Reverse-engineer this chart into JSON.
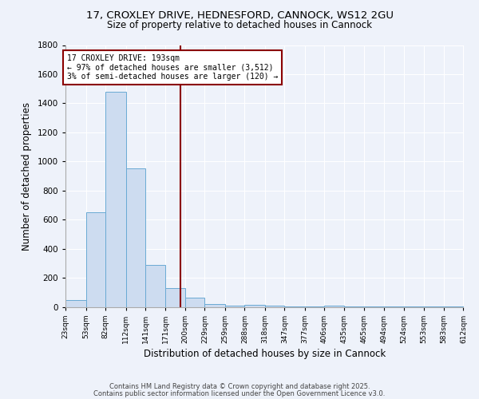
{
  "title1": "17, CROXLEY DRIVE, HEDNESFORD, CANNOCK, WS12 2GU",
  "title2": "Size of property relative to detached houses in Cannock",
  "xlabel": "Distribution of detached houses by size in Cannock",
  "ylabel": "Number of detached properties",
  "bins": [
    23,
    53,
    82,
    112,
    141,
    171,
    200,
    229,
    259,
    288,
    318,
    347,
    377,
    406,
    435,
    465,
    494,
    524,
    553,
    583,
    612
  ],
  "counts": [
    50,
    650,
    1480,
    950,
    290,
    130,
    65,
    22,
    10,
    12,
    8,
    5,
    3,
    10,
    2,
    2,
    1,
    1,
    1,
    1
  ],
  "bar_color": "#cddcf0",
  "bar_edge_color": "#6aaad4",
  "vline_x": 193,
  "vline_color": "#8b0000",
  "annotation_text_line1": "17 CROXLEY DRIVE: 193sqm",
  "annotation_text_line2": "← 97% of detached houses are smaller (3,512)",
  "annotation_text_line3": "3% of semi-detached houses are larger (120) →",
  "annotation_box_color": "#8b0000",
  "ylim": [
    0,
    1800
  ],
  "yticks": [
    0,
    200,
    400,
    600,
    800,
    1000,
    1200,
    1400,
    1600,
    1800
  ],
  "footer1": "Contains HM Land Registry data © Crown copyright and database right 2025.",
  "footer2": "Contains public sector information licensed under the Open Government Licence v3.0.",
  "bg_color": "#eef2fa",
  "plot_bg_color": "#eef2fa",
  "grid_color": "#ffffff",
  "title1_fontsize": 9.5,
  "title2_fontsize": 8.5,
  "xlabel_fontsize": 8.5,
  "ylabel_fontsize": 8.5,
  "xtick_fontsize": 6.5,
  "ytick_fontsize": 7.5,
  "annotation_fontsize": 7.0,
  "footer_fontsize": 6.0
}
